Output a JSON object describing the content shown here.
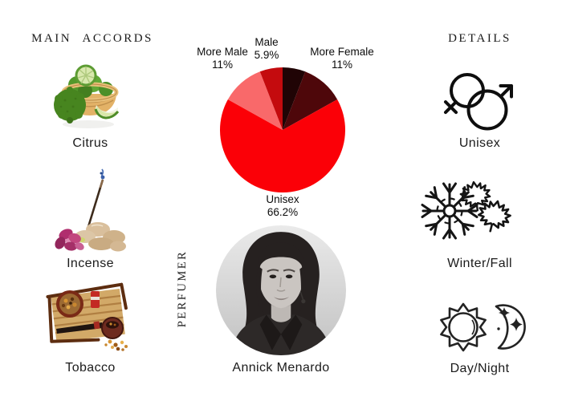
{
  "headers": {
    "main_accords": "MAIN ACCORDS",
    "details": "DETAILS"
  },
  "accords": [
    {
      "label": "Citrus",
      "icon": "bergamot-basket-image"
    },
    {
      "label": "Incense",
      "icon": "incense-stones-orchid-image"
    },
    {
      "label": "Tobacco",
      "icon": "tobacco-pipe-image"
    }
  ],
  "details": [
    {
      "label": "Unisex",
      "icon": "gender-unisex-icon"
    },
    {
      "label": "Winter/Fall",
      "icon": "snowflake-maple-leaves-icon"
    },
    {
      "label": "Day/Night",
      "icon": "sun-moon-icon"
    }
  ],
  "perfumer": {
    "section_label": "PERFUMER",
    "name": "Annick Menardo"
  },
  "chart_data": {
    "type": "pie",
    "description": "Gender audience vote distribution",
    "direction": "clockwise",
    "start_angle_deg": 0,
    "legend_position": "around-slices",
    "slices": [
      {
        "name": "Female",
        "value": 5.9,
        "pct_text": "",
        "color": "#200405",
        "label_visible": false
      },
      {
        "name": "More Female",
        "value": 11,
        "pct_text": "11%",
        "color": "#4e070a",
        "label_visible": true
      },
      {
        "name": "Unisex",
        "value": 66.2,
        "pct_text": "66.2%",
        "color": "#fb0007",
        "label_visible": true
      },
      {
        "name": "More Male",
        "value": 11,
        "pct_text": "11%",
        "color": "#f9696a",
        "label_visible": true
      },
      {
        "name": "Male",
        "value": 5.9,
        "pct_text": "5.9%",
        "color": "#c40b0e",
        "label_visible": true
      }
    ]
  }
}
